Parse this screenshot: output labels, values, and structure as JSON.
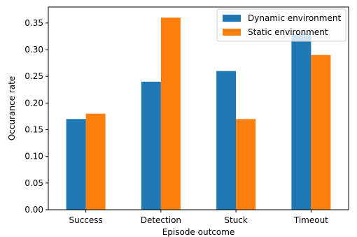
{
  "chart_data": {
    "type": "bar",
    "categories": [
      "Success",
      "Detection",
      "Stuck",
      "Timeout"
    ],
    "series": [
      {
        "name": "Dynamic environment",
        "color": "#1f77b4",
        "values": [
          0.17,
          0.24,
          0.26,
          0.33
        ]
      },
      {
        "name": "Static environment",
        "color": "#ff7f0e",
        "values": [
          0.18,
          0.36,
          0.17,
          0.29
        ]
      }
    ],
    "xlabel": "Episode outcome",
    "ylabel": "Occurance rate",
    "ylim": [
      0,
      0.38
    ],
    "yticks": [
      "0.00",
      "0.05",
      "0.10",
      "0.15",
      "0.20",
      "0.25",
      "0.30",
      "0.35"
    ],
    "legend_position": "top-right",
    "grid": false
  }
}
